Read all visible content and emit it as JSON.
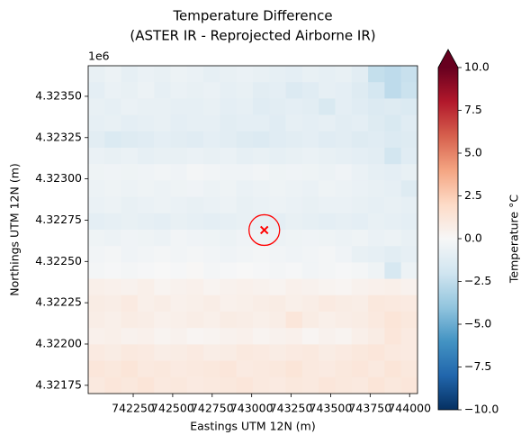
{
  "chart_data": {
    "type": "heatmap",
    "title": "Temperature Difference",
    "subtitle": "(ASTER IR - Reprojected Airborne IR)",
    "x_label": "Eastings UTM 12N (m)",
    "y_label": "Northings UTM 12N (m)",
    "y_offset_label": "1e6",
    "colorbar_label": "Temperature °C",
    "colormap": "RdBu_r",
    "xlim": [
      741965,
      744050
    ],
    "ylim": [
      4.3217,
      4.323685
    ],
    "xticks": [
      742250,
      742500,
      742750,
      743000,
      743250,
      743500,
      743750,
      744000
    ],
    "yticks": [
      {
        "value": 4.32175,
        "label": "4.32175"
      },
      {
        "value": 4.322,
        "label": "4.32200"
      },
      {
        "value": 4.32225,
        "label": "4.32225"
      },
      {
        "value": 4.3225,
        "label": "4.32250"
      },
      {
        "value": 4.32275,
        "label": "4.32275"
      },
      {
        "value": 4.323,
        "label": "4.32300"
      },
      {
        "value": 4.32325,
        "label": "4.32325"
      },
      {
        "value": 4.3235,
        "label": "4.32350"
      }
    ],
    "clim": [
      -10,
      10
    ],
    "colorbar_extend": "max",
    "cticks": [
      {
        "value": -10,
        "label": "−10.0"
      },
      {
        "value": -7.5,
        "label": "−7.5"
      },
      {
        "value": -5,
        "label": "−5.0"
      },
      {
        "value": -2.5,
        "label": "−2.5"
      },
      {
        "value": 0,
        "label": "0.0"
      },
      {
        "value": 2.5,
        "label": "2.5"
      },
      {
        "value": 5,
        "label": "5.0"
      },
      {
        "value": 7.5,
        "label": "7.5"
      },
      {
        "value": 10,
        "label": "10.0"
      }
    ],
    "marker": {
      "x": 743080,
      "y": 4.32269,
      "color": "#ff0000"
    },
    "z": [
      [
        -0.8,
        -0.6,
        -0.9,
        -0.7,
        -0.8,
        -0.6,
        -0.7,
        -0.9,
        -0.8,
        -0.7,
        -0.8,
        -0.9,
        -1.0,
        -0.8,
        -0.9,
        -0.8,
        -1.1,
        -2.4,
        -2.6,
        -2.3
      ],
      [
        -1.0,
        -0.7,
        -0.8,
        -0.6,
        -0.9,
        -0.7,
        -0.8,
        -0.7,
        -0.9,
        -0.8,
        -1.1,
        -1.0,
        -1.4,
        -1.2,
        -0.9,
        -1.0,
        -1.3,
        -1.8,
        -2.6,
        -2.2
      ],
      [
        -0.8,
        -0.9,
        -0.7,
        -0.8,
        -0.8,
        -0.9,
        -0.9,
        -0.8,
        -1.0,
        -0.9,
        -1.2,
        -1.1,
        -1.0,
        -1.1,
        -1.6,
        -1.0,
        -1.2,
        -1.4,
        -1.3,
        -1.5
      ],
      [
        -0.9,
        -0.8,
        -1.0,
        -0.9,
        -0.8,
        -1.0,
        -0.9,
        -0.9,
        -1.1,
        -1.0,
        -1.0,
        -1.2,
        -0.9,
        -1.0,
        -0.9,
        -1.1,
        -1.0,
        -1.3,
        -1.6,
        -1.2
      ],
      [
        -1.1,
        -1.5,
        -1.3,
        -1.2,
        -1.0,
        -1.1,
        -1.2,
        -1.0,
        -1.1,
        -1.3,
        -1.4,
        -1.2,
        -1.1,
        -1.0,
        -1.2,
        -1.1,
        -1.3,
        -1.2,
        -1.4,
        -1.3
      ],
      [
        -0.7,
        -0.8,
        -0.7,
        -0.9,
        -0.8,
        -0.8,
        -0.7,
        -0.8,
        -0.7,
        -0.9,
        -0.8,
        -0.9,
        -0.8,
        -0.7,
        -0.8,
        -0.9,
        -1.0,
        -1.1,
        -1.9,
        -1.2
      ],
      [
        -0.5,
        -0.4,
        -0.5,
        -0.4,
        -0.3,
        -0.4,
        -0.2,
        -0.3,
        -0.4,
        -0.4,
        -0.3,
        -0.5,
        -0.4,
        -0.5,
        -0.6,
        -0.4,
        -0.7,
        -0.9,
        -1.0,
        -0.8
      ],
      [
        -0.6,
        -0.5,
        -0.6,
        -0.5,
        -0.6,
        -0.5,
        -0.4,
        -0.6,
        -0.5,
        -0.7,
        -0.6,
        -0.5,
        -0.6,
        -0.7,
        -0.5,
        -0.6,
        -0.7,
        -0.8,
        -0.9,
        -1.3
      ],
      [
        -0.7,
        -0.6,
        -0.8,
        -0.7,
        -0.6,
        -0.7,
        -0.8,
        -0.7,
        -0.6,
        -0.8,
        -0.7,
        -0.6,
        -0.7,
        -0.8,
        -0.7,
        -0.7,
        -0.8,
        -0.9,
        -0.8,
        -0.9
      ],
      [
        -1.0,
        -0.9,
        -0.8,
        -0.9,
        -1.0,
        -0.8,
        -0.9,
        -1.0,
        -0.9,
        -0.8,
        -0.9,
        -1.0,
        -0.8,
        -0.9,
        -1.0,
        -0.9,
        -1.0,
        -0.8,
        -0.9,
        -1.0
      ],
      [
        -0.5,
        -0.6,
        -0.4,
        -0.5,
        -0.6,
        -0.3,
        -0.4,
        -0.5,
        -0.6,
        -0.4,
        -0.5,
        -0.6,
        -0.5,
        -0.4,
        -0.5,
        -0.6,
        -0.5,
        -0.7,
        -0.6,
        -0.8
      ],
      [
        -0.3,
        -0.2,
        -0.4,
        -0.3,
        -0.2,
        -0.3,
        -0.2,
        -0.3,
        -0.4,
        -0.3,
        -0.2,
        -0.3,
        -0.4,
        -0.3,
        -0.2,
        -0.4,
        -0.8,
        -0.9,
        -1.1,
        -0.9
      ],
      [
        -0.2,
        -0.1,
        -0.2,
        -0.1,
        0.0,
        -0.1,
        0.1,
        -0.2,
        -0.1,
        0.0,
        -0.1,
        -0.2,
        -0.1,
        -0.3,
        -0.2,
        -0.1,
        -0.2,
        -0.5,
        -1.7,
        -0.6
      ],
      [
        0.6,
        0.5,
        0.4,
        0.6,
        0.3,
        0.4,
        0.5,
        0.3,
        0.4,
        0.5,
        0.4,
        0.3,
        0.5,
        0.4,
        0.3,
        0.2,
        0.4,
        0.5,
        0.6,
        0.4
      ],
      [
        0.8,
        0.7,
        0.9,
        0.6,
        0.7,
        0.5,
        0.6,
        0.7,
        0.5,
        0.6,
        0.7,
        0.8,
        0.6,
        0.7,
        0.9,
        0.8,
        0.7,
        1.1,
        1.0,
        0.9
      ],
      [
        0.7,
        0.6,
        0.8,
        0.7,
        0.5,
        0.6,
        0.7,
        0.6,
        0.8,
        0.7,
        0.6,
        0.7,
        1.2,
        0.8,
        0.6,
        0.7,
        0.8,
        1.0,
        1.3,
        1.1
      ],
      [
        0.5,
        0.6,
        0.4,
        0.5,
        0.3,
        0.4,
        0.2,
        0.3,
        0.4,
        0.5,
        0.3,
        0.4,
        0.5,
        0.2,
        0.4,
        0.3,
        0.6,
        0.8,
        1.2,
        0.9
      ],
      [
        0.9,
        0.8,
        1.0,
        0.9,
        0.7,
        0.8,
        0.9,
        0.7,
        0.8,
        1.0,
        0.9,
        0.8,
        0.9,
        1.0,
        0.8,
        0.9,
        1.1,
        1.2,
        1.0,
        0.9
      ],
      [
        1.2,
        1.1,
        1.3,
        1.0,
        1.1,
        0.9,
        1.0,
        1.1,
        1.2,
        0.9,
        1.0,
        1.1,
        1.3,
        1.0,
        0.9,
        1.1,
        1.2,
        1.0,
        1.3,
        1.1
      ],
      [
        1.0,
        1.2,
        1.1,
        1.3,
        1.0,
        1.1,
        0.9,
        1.0,
        1.1,
        1.2,
        1.0,
        0.9,
        1.1,
        1.0,
        1.2,
        1.1,
        1.0,
        1.3,
        1.1,
        1.2
      ]
    ]
  }
}
